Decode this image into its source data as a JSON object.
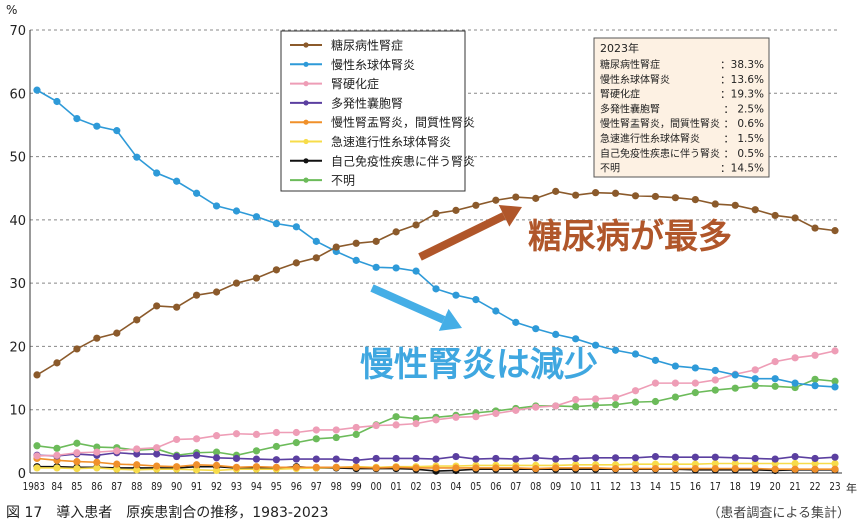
{
  "chart_data": {
    "type": "line",
    "title": "",
    "ylabel": "%",
    "xlabel": "年",
    "ylim": [
      0,
      70
    ],
    "yticks": [
      0,
      10,
      20,
      30,
      40,
      50,
      60,
      70
    ],
    "grid": "horizontal dashed",
    "legend_placement": "top-center",
    "x": [
      1983,
      1984,
      1985,
      1986,
      1987,
      1988,
      1989,
      1990,
      1991,
      1992,
      1993,
      1994,
      1995,
      1996,
      1997,
      1998,
      1999,
      2000,
      2001,
      2002,
      2003,
      2004,
      2005,
      2006,
      2007,
      2008,
      2009,
      2010,
      2011,
      2012,
      2013,
      2014,
      2015,
      2016,
      2017,
      2018,
      2019,
      2020,
      2021,
      2022,
      2023
    ],
    "xtick_labels": [
      "1983",
      "84",
      "85",
      "86",
      "87",
      "88",
      "89",
      "90",
      "91",
      "92",
      "93",
      "94",
      "95",
      "96",
      "97",
      "98",
      "99",
      "00",
      "01",
      "02",
      "03",
      "04",
      "05",
      "06",
      "07",
      "08",
      "09",
      "10",
      "11",
      "12",
      "13",
      "14",
      "15",
      "16",
      "17",
      "18",
      "19",
      "20",
      "21",
      "22",
      "23"
    ],
    "series": [
      {
        "name": "糖尿病性腎症",
        "color": "#8b5a2b",
        "values": [
          15.5,
          17.4,
          19.6,
          21.3,
          22.1,
          24.2,
          26.4,
          26.2,
          28.1,
          28.6,
          30.0,
          30.8,
          32.1,
          33.2,
          34.0,
          35.7,
          36.3,
          36.6,
          38.1,
          39.2,
          41.0,
          41.5,
          42.3,
          43.1,
          43.6,
          43.4,
          44.5,
          43.9,
          44.3,
          44.2,
          43.8,
          43.7,
          43.5,
          43.2,
          42.5,
          42.3,
          41.6,
          40.7,
          40.3,
          38.7,
          38.3
        ]
      },
      {
        "name": "慢性糸球体腎炎",
        "color": "#2e9ad8",
        "values": [
          60.5,
          58.7,
          56.0,
          54.8,
          54.1,
          49.9,
          47.4,
          46.1,
          44.2,
          42.2,
          41.4,
          40.5,
          39.4,
          38.9,
          36.6,
          35.0,
          33.6,
          32.5,
          32.4,
          31.9,
          29.1,
          28.1,
          27.4,
          25.6,
          23.8,
          22.8,
          21.9,
          21.2,
          20.2,
          19.4,
          18.8,
          17.8,
          16.9,
          16.6,
          16.2,
          15.5,
          14.9,
          14.9,
          14.2,
          13.8,
          13.6
        ]
      },
      {
        "name": "腎硬化症",
        "color": "#ee9db6",
        "values": [
          2.7,
          2.8,
          3.2,
          3.3,
          3.5,
          3.8,
          4.0,
          5.3,
          5.4,
          5.9,
          6.2,
          6.1,
          6.4,
          6.4,
          6.8,
          6.8,
          7.2,
          7.5,
          7.6,
          7.8,
          8.4,
          8.8,
          8.9,
          9.4,
          9.9,
          10.4,
          10.6,
          11.6,
          11.7,
          11.9,
          13.0,
          14.2,
          14.2,
          14.2,
          14.7,
          15.6,
          16.3,
          17.6,
          18.2,
          18.6,
          19.3
        ]
      },
      {
        "name": "多発性嚢胞腎",
        "color": "#5b3fa0",
        "values": [
          2.8,
          2.7,
          3.0,
          2.8,
          3.2,
          3.0,
          3.0,
          2.6,
          2.8,
          2.4,
          2.3,
          2.2,
          2.1,
          2.2,
          2.2,
          2.2,
          2.0,
          2.3,
          2.3,
          2.3,
          2.2,
          2.6,
          2.2,
          2.3,
          2.2,
          2.4,
          2.2,
          2.3,
          2.4,
          2.4,
          2.4,
          2.6,
          2.5,
          2.5,
          2.5,
          2.4,
          2.3,
          2.2,
          2.6,
          2.3,
          2.5
        ]
      },
      {
        "name": "慢性腎盂腎炎，間質性腎炎",
        "color": "#f0902a",
        "values": [
          2.3,
          2.0,
          1.8,
          1.7,
          1.4,
          1.3,
          1.1,
          1.0,
          1.3,
          1.2,
          0.9,
          1.0,
          0.9,
          0.9,
          0.9,
          0.9,
          0.9,
          0.8,
          0.9,
          0.8,
          0.8,
          0.8,
          0.8,
          0.8,
          0.8,
          0.7,
          0.8,
          0.8,
          0.8,
          0.7,
          0.7,
          0.7,
          0.7,
          0.7,
          0.7,
          0.7,
          0.7,
          0.6,
          0.6,
          0.6,
          0.6
        ]
      },
      {
        "name": "急速進行性糸球体腎炎",
        "color": "#f7dc4a",
        "values": [
          0.8,
          0.8,
          0.7,
          0.8,
          0.6,
          0.5,
          0.6,
          0.6,
          0.5,
          0.4,
          0.6,
          0.6,
          0.6,
          0.7,
          0.8,
          0.9,
          1.0,
          0.9,
          1.0,
          1.0,
          1.1,
          1.1,
          1.2,
          1.2,
          1.2,
          1.2,
          1.2,
          1.3,
          1.3,
          1.3,
          1.4,
          1.4,
          1.4,
          1.4,
          1.5,
          1.5,
          1.5,
          1.5,
          1.5,
          1.5,
          1.5
        ]
      },
      {
        "name": "自己免疫性疾患に伴う腎炎",
        "color": "#111111",
        "values": [
          1.0,
          1.0,
          0.9,
          0.9,
          0.8,
          0.8,
          0.8,
          0.8,
          1.0,
          1.0,
          0.8,
          0.8,
          0.8,
          1.0,
          0.8,
          0.8,
          0.7,
          0.7,
          0.7,
          0.6,
          0.3,
          0.4,
          0.6,
          0.6,
          0.6,
          0.6,
          0.6,
          0.6,
          0.6,
          0.6,
          0.6,
          0.6,
          0.6,
          0.5,
          0.5,
          0.5,
          0.5,
          0.4,
          0.5,
          0.5,
          0.5
        ]
      },
      {
        "name": "不明",
        "color": "#6cbb5a",
        "values": [
          4.3,
          3.9,
          4.7,
          4.1,
          4.0,
          3.6,
          3.8,
          2.8,
          3.2,
          3.3,
          2.8,
          3.5,
          4.2,
          4.8,
          5.4,
          5.6,
          6.1,
          7.6,
          8.9,
          8.6,
          8.8,
          9.1,
          9.5,
          9.8,
          10.2,
          10.6,
          10.6,
          10.5,
          10.7,
          10.8,
          11.2,
          11.3,
          12.0,
          12.7,
          13.1,
          13.4,
          13.8,
          13.7,
          13.5,
          14.8,
          14.5
        ]
      }
    ],
    "annotations": {
      "summary_title": "2023年",
      "summary": [
        {
          "label": "糖尿病性腎症",
          "value": "：38.3%"
        },
        {
          "label": "慢性糸球体腎炎",
          "value": "：13.6%"
        },
        {
          "label": "腎硬化症",
          "value": "：19.3%"
        },
        {
          "label": "多発性嚢胞腎",
          "value": "：  2.5%"
        },
        {
          "label": "慢性腎盂腎炎，間質性腎炎",
          "value": "：  0.6%"
        },
        {
          "label": "急速進行性糸球体腎炎",
          "value": "：  1.5%"
        },
        {
          "label": "自己免疫性疾患に伴う腎炎",
          "value": "：  0.5%"
        },
        {
          "label": "不明",
          "value": "：14.5%"
        }
      ],
      "callout_diabetes": "糖尿病が最多",
      "callout_gn": "慢性腎炎は減少"
    }
  },
  "caption": {
    "figure": "図 17　導入患者　原疾患割合の推移，1983-2023",
    "source": "（患者調査による集計）"
  }
}
